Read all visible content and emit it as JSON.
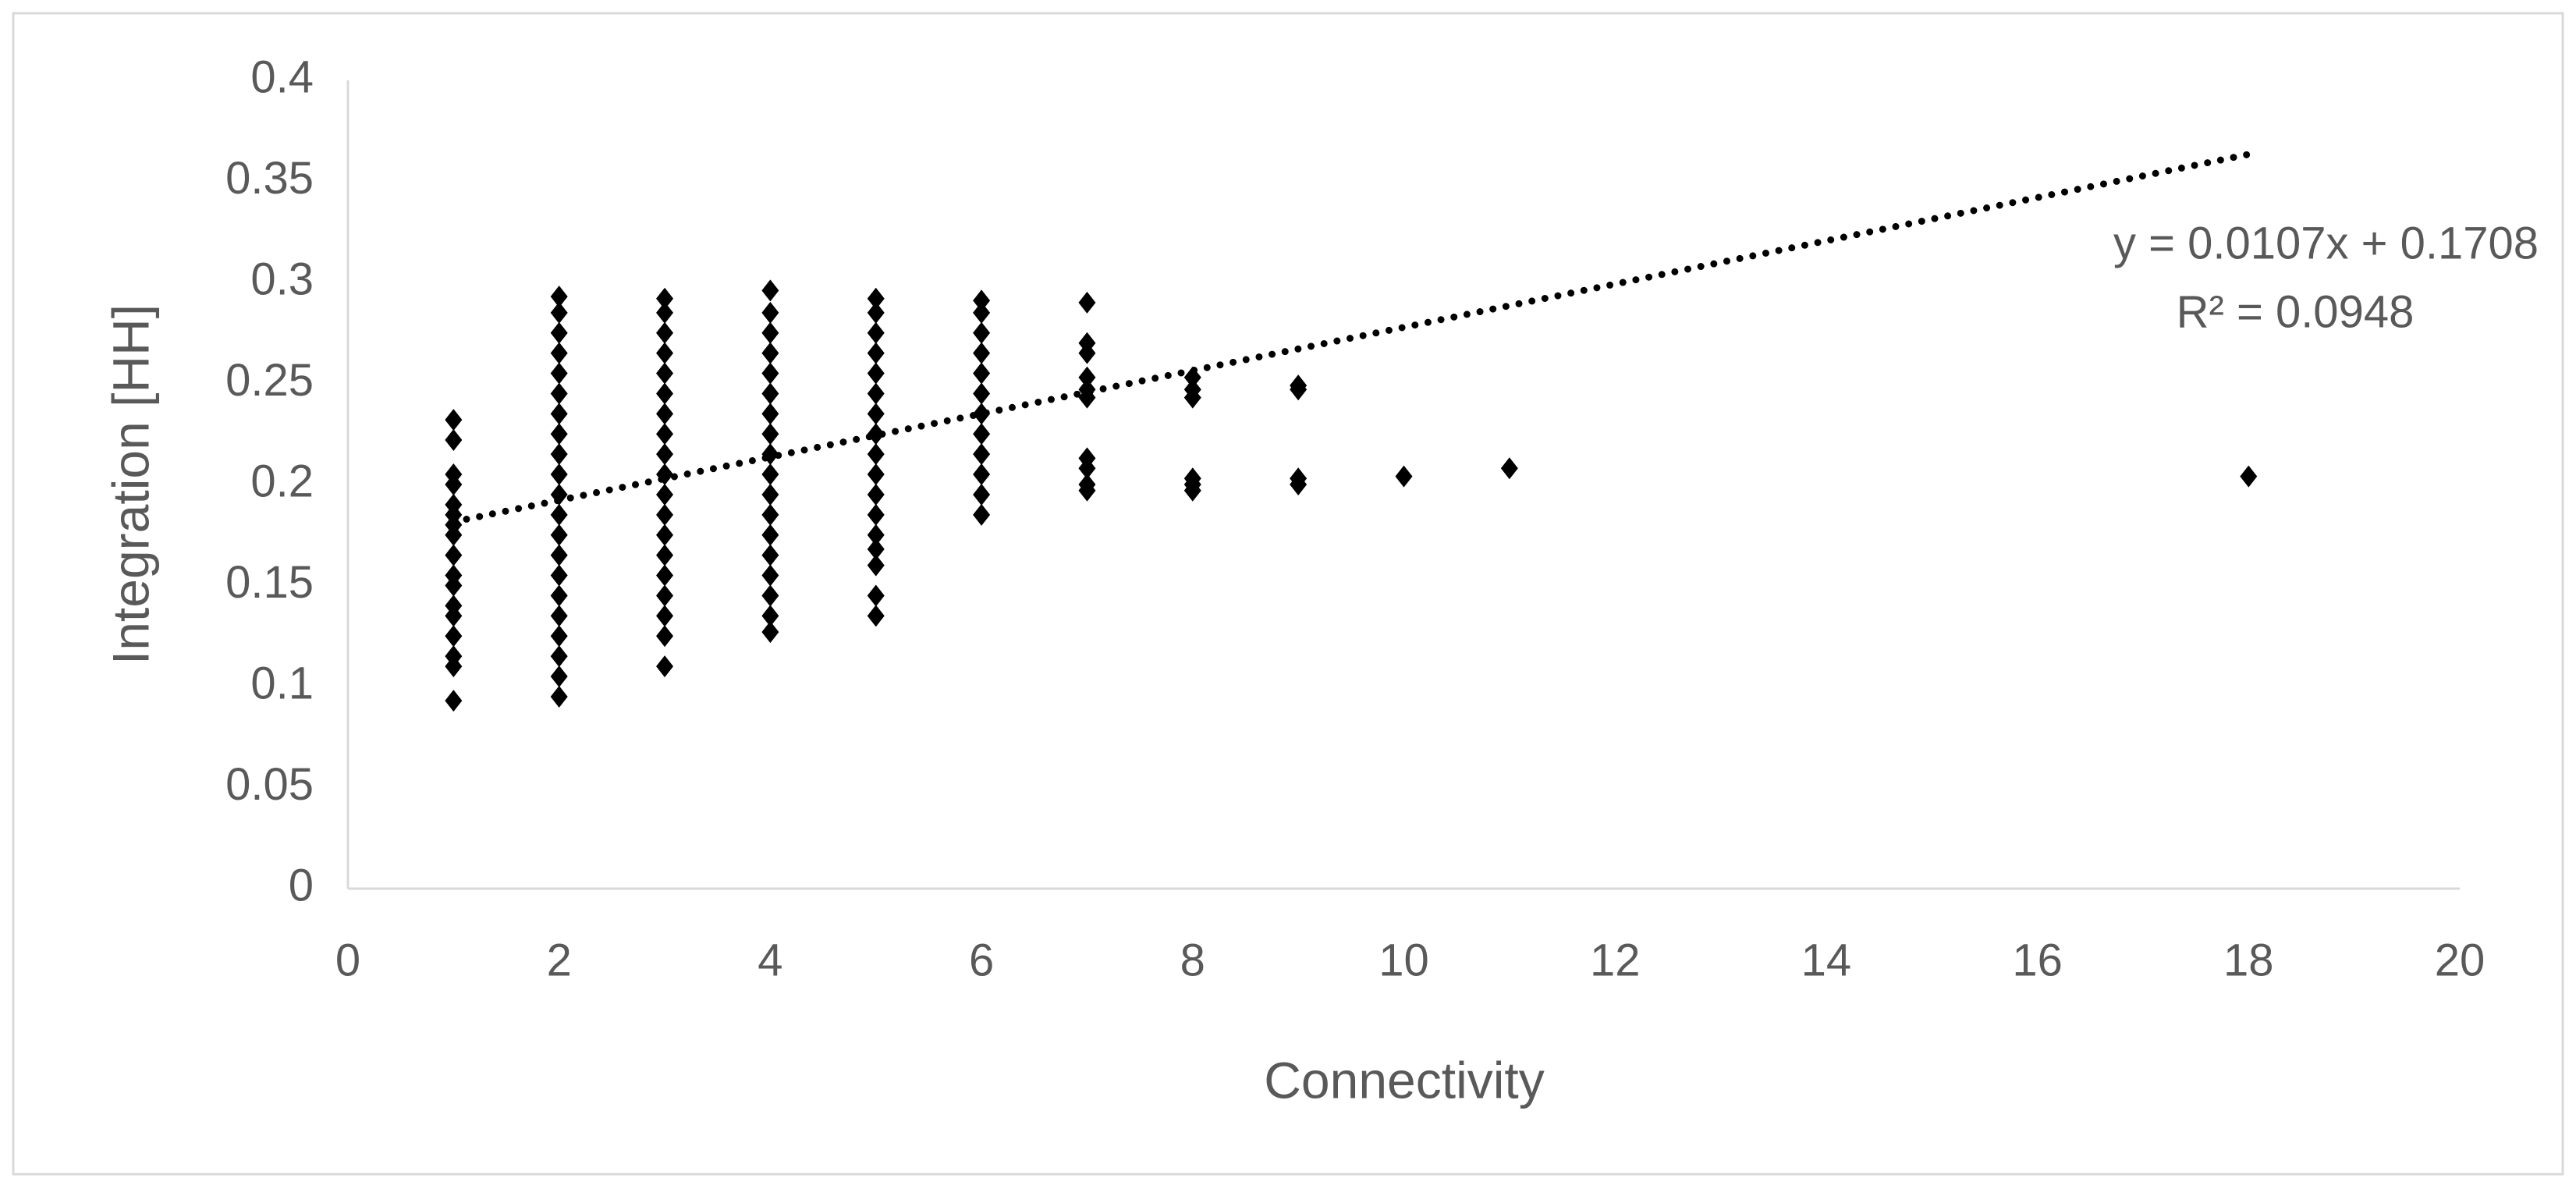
{
  "chart_data": {
    "type": "scatter",
    "x_label": "Connectivity",
    "y_label": "Integration [HH]",
    "color": "#000000",
    "xlim": [
      0,
      20
    ],
    "xticks": [
      0,
      2,
      4,
      6,
      8,
      10,
      12,
      14,
      16,
      18,
      20
    ],
    "ylim": [
      0,
      0.4
    ],
    "yticks": [
      0,
      0.05,
      0.1,
      0.15,
      0.2,
      0.25,
      0.3,
      0.35,
      0.4
    ],
    "grid": false,
    "series": [
      {
        "x": 1,
        "values": [
          0.093,
          0.11,
          0.115,
          0.125,
          0.135,
          0.14,
          0.15,
          0.155,
          0.165,
          0.175,
          0.18,
          0.185,
          0.19,
          0.2,
          0.205,
          0.222,
          0.232
        ]
      },
      {
        "x": 2,
        "values": [
          0.095,
          0.105,
          0.115,
          0.125,
          0.135,
          0.145,
          0.155,
          0.165,
          0.175,
          0.185,
          0.195,
          0.205,
          0.215,
          0.225,
          0.235,
          0.245,
          0.255,
          0.265,
          0.275,
          0.285,
          0.293
        ]
      },
      {
        "x": 3,
        "values": [
          0.11,
          0.125,
          0.135,
          0.145,
          0.155,
          0.165,
          0.175,
          0.185,
          0.195,
          0.205,
          0.215,
          0.225,
          0.235,
          0.245,
          0.255,
          0.265,
          0.275,
          0.285,
          0.292
        ]
      },
      {
        "x": 4,
        "values": [
          0.127,
          0.135,
          0.145,
          0.155,
          0.165,
          0.175,
          0.185,
          0.195,
          0.205,
          0.215,
          0.225,
          0.235,
          0.245,
          0.255,
          0.265,
          0.275,
          0.285,
          0.296
        ]
      },
      {
        "x": 5,
        "values": [
          0.135,
          0.145,
          0.16,
          0.168,
          0.175,
          0.185,
          0.195,
          0.205,
          0.215,
          0.225,
          0.235,
          0.245,
          0.255,
          0.265,
          0.275,
          0.285,
          0.292
        ]
      },
      {
        "x": 6,
        "values": [
          0.185,
          0.195,
          0.205,
          0.215,
          0.225,
          0.235,
          0.245,
          0.255,
          0.265,
          0.275,
          0.285,
          0.291
        ]
      },
      {
        "x": 7,
        "values": [
          0.197,
          0.2,
          0.208,
          0.213,
          0.243,
          0.247,
          0.253,
          0.265,
          0.27,
          0.29
        ]
      },
      {
        "x": 8,
        "values": [
          0.197,
          0.2,
          0.203,
          0.243,
          0.247,
          0.253
        ]
      },
      {
        "x": 9,
        "values": [
          0.2,
          0.203,
          0.247,
          0.249
        ]
      },
      {
        "x": 10,
        "values": [
          0.204
        ]
      },
      {
        "x": 11,
        "values": [
          0.208
        ]
      },
      {
        "x": 18,
        "values": [
          0.204
        ]
      }
    ],
    "trendline": {
      "x": [
        1,
        18
      ],
      "values": [
        0.1815,
        0.3634
      ],
      "style": "dotted"
    },
    "annotations": [
      "y = 0.0107x + 0.1708",
      "R² = 0.0948"
    ]
  }
}
